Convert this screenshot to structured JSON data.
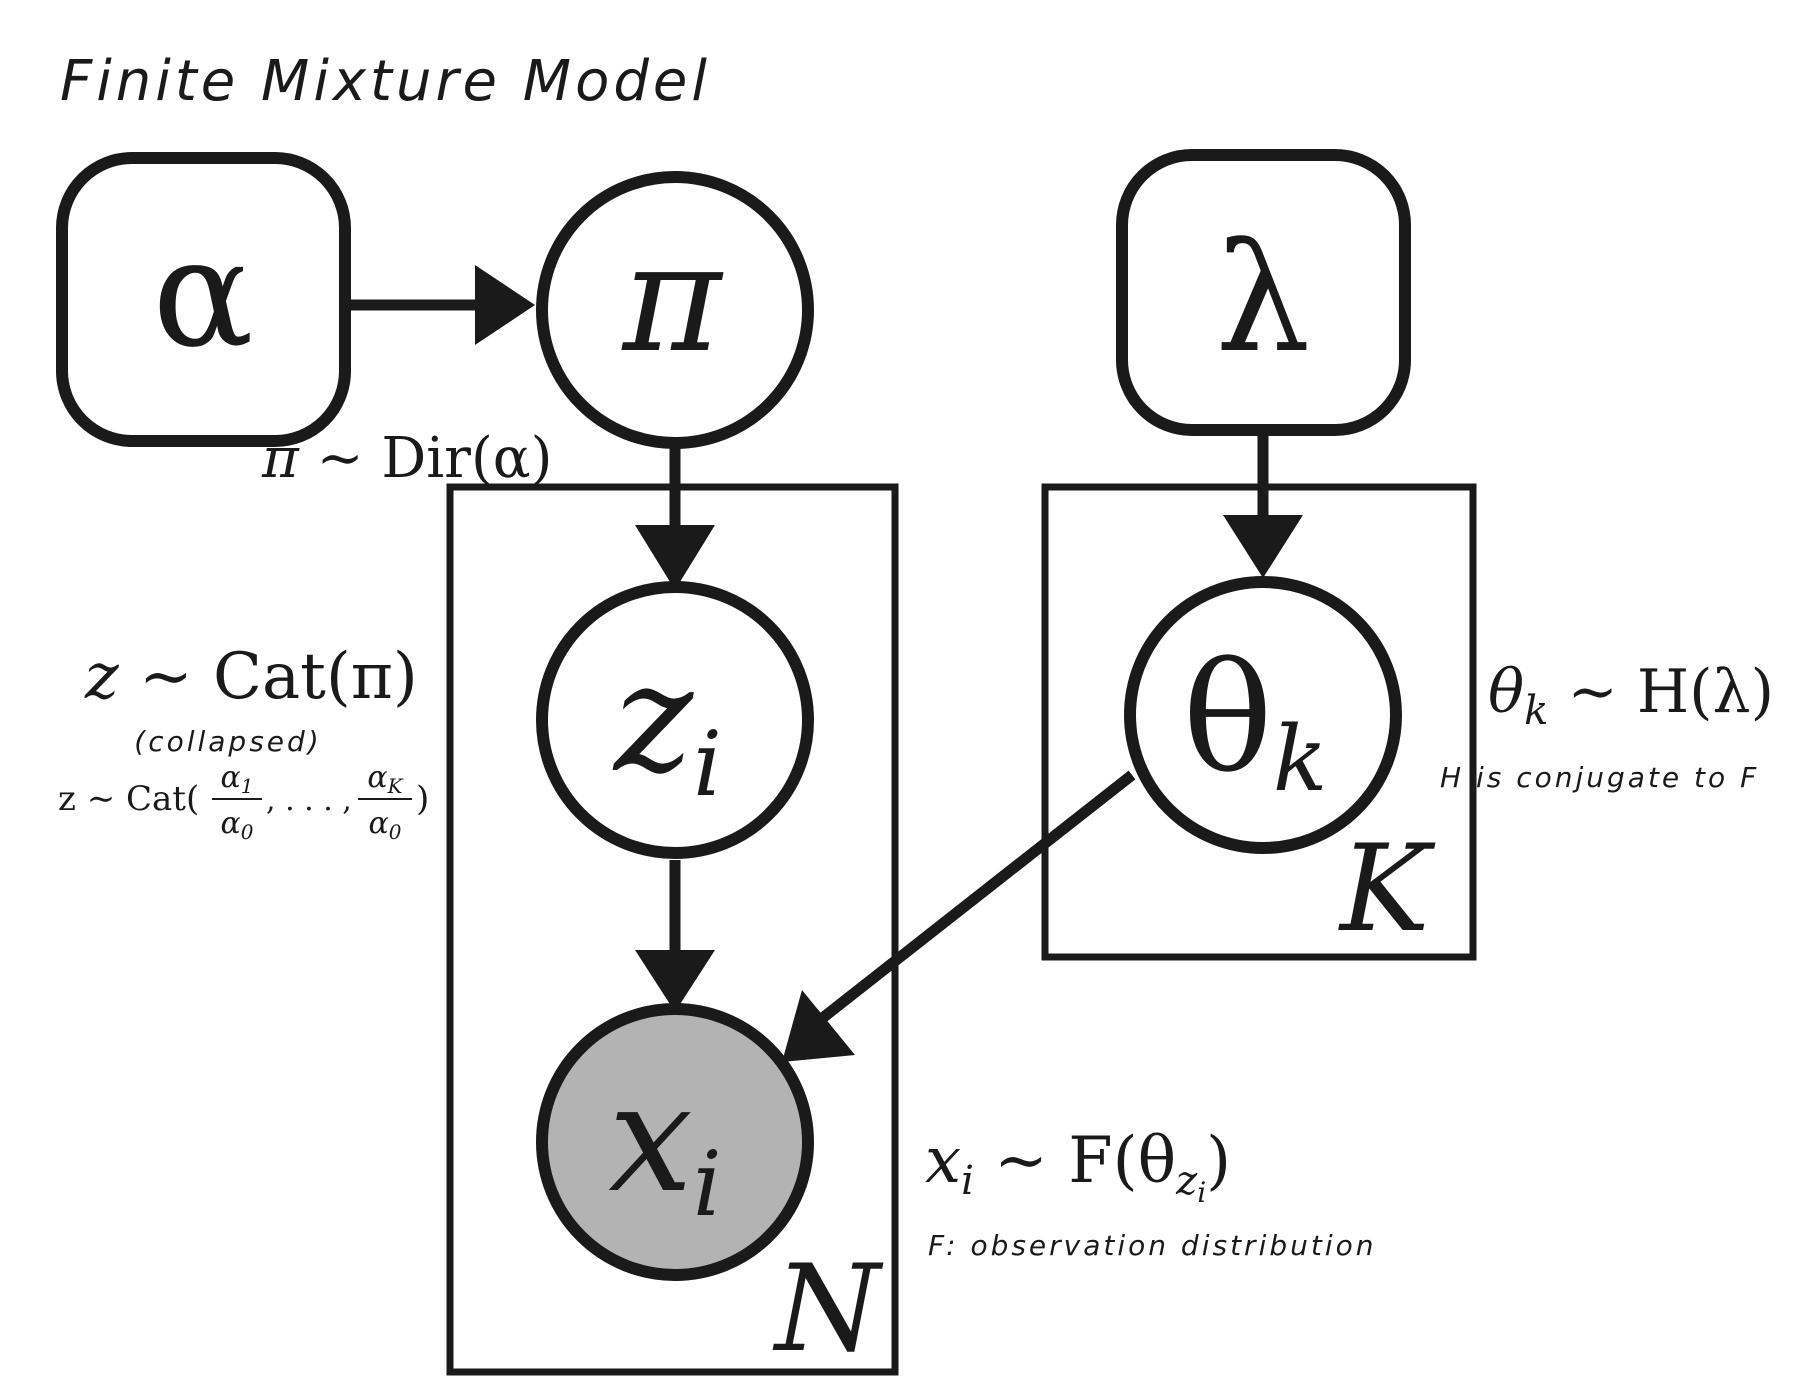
{
  "title": "Finite Mixture Model",
  "nodes": {
    "alpha": {
      "symbol": "α"
    },
    "pi": {
      "symbol": "π"
    },
    "lambda": {
      "symbol": "λ"
    },
    "z": {
      "symbol": "z",
      "subscript": "i"
    },
    "theta": {
      "symbol": "θ",
      "subscript": "k"
    },
    "x": {
      "symbol": "x",
      "subscript": "i",
      "observed": true,
      "fill": "#b3b3b3"
    }
  },
  "plates": {
    "N": {
      "label": "N"
    },
    "K": {
      "label": "K"
    }
  },
  "annotations": {
    "pi_dist": {
      "lhs": "π",
      "op": "∼",
      "rhs": "Dir(α)"
    },
    "z_dist": {
      "lhs": "z",
      "op": "∼",
      "rhs": "Cat(π)"
    },
    "collapsed_label": "(collapsed)",
    "z_collapsed": {
      "prefix": "z ∼ Cat(",
      "frac1_num": "α",
      "frac1_num_sub": "1",
      "frac1_den": "α",
      "frac1_den_sub": "0",
      "sep": ", . . . ,",
      "frac2_num": "α",
      "frac2_num_sub": "K",
      "frac2_den": "α",
      "frac2_den_sub": "0",
      "suffix": ")"
    },
    "theta_dist": {
      "lhs": "θ",
      "lhs_sub": "k",
      "op": "∼",
      "rhs": "H(λ)"
    },
    "conjugate_note": "H is conjugate to F",
    "x_dist": {
      "lhs": "x",
      "lhs_sub": "i",
      "op": "∼",
      "rhs_pre": "F(θ",
      "rhs_sub": "z",
      "rhs_subsub": "i",
      "rhs_post": ")"
    },
    "observation_note": "F: observation distribution"
  },
  "colors": {
    "stroke": "#1a1a1a",
    "background": "#ffffff"
  }
}
